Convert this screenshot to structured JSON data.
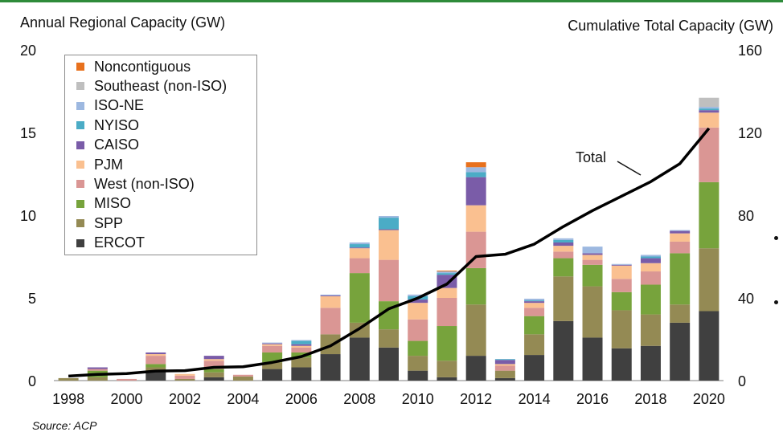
{
  "header": {
    "left_axis_title": "Annual Regional Capacity (GW)",
    "right_axis_title": "Cumulative Total Capacity (GW)"
  },
  "source": "Source: ACP",
  "total_label": "Total",
  "colors": {
    "Noncontiguous": "#e8711d",
    "Southeast (non-ISO)": "#bfbfbf",
    "ISO-NE": "#9db8e0",
    "NYISO": "#4bacc6",
    "CAISO": "#7a5ca8",
    "PJM": "#fac090",
    "West (non-ISO)": "#da9694",
    "MISO": "#77a33c",
    "SPP": "#948a54",
    "ERCOT": "#404040",
    "total_line": "#000000",
    "accent_line": "#2e8b3a"
  },
  "chart_data": {
    "type": "bar",
    "stacked": true,
    "categories": [
      "1998",
      "1999",
      "2000",
      "2001",
      "2002",
      "2003",
      "2004",
      "2005",
      "2006",
      "2007",
      "2008",
      "2009",
      "2010",
      "2011",
      "2012",
      "2013",
      "2014",
      "2015",
      "2016",
      "2017",
      "2018",
      "2019",
      "2020"
    ],
    "x_tick_labels": [
      "1998",
      "2000",
      "2002",
      "2004",
      "2006",
      "2008",
      "2010",
      "2012",
      "2014",
      "2016",
      "2018",
      "2020"
    ],
    "ylabel_left": "Annual Regional Capacity (GW)",
    "ylabel_right": "Cumulative Total Capacity (GW)",
    "ylim_left": [
      0,
      20
    ],
    "yticks_left": [
      0,
      5,
      10,
      15,
      20
    ],
    "ylim_right": [
      0,
      160
    ],
    "yticks_right": [
      0,
      40,
      80,
      120,
      160
    ],
    "legend_position": "top-left",
    "series": [
      {
        "name": "ERCOT",
        "values": [
          0,
          0,
          0,
          0.6,
          0,
          0.2,
          0,
          0.7,
          0.8,
          1.6,
          2.6,
          2.0,
          0.6,
          0.2,
          1.5,
          0.15,
          1.55,
          3.6,
          2.6,
          1.95,
          2.1,
          3.5,
          4.2
        ]
      },
      {
        "name": "SPP",
        "values": [
          0.15,
          0.2,
          0,
          0.2,
          0.1,
          0.3,
          0.25,
          0.4,
          0.6,
          1.2,
          0.9,
          1.1,
          0.9,
          1.0,
          3.1,
          0.45,
          1.25,
          2.7,
          3.1,
          2.3,
          1.9,
          1.1,
          3.8
        ]
      },
      {
        "name": "MISO",
        "values": [
          0,
          0.4,
          0,
          0.2,
          0,
          0.2,
          0,
          0.6,
          0.3,
          0,
          3.0,
          1.7,
          0.9,
          2.1,
          2.2,
          0,
          1.1,
          1.1,
          1.3,
          1.1,
          1.8,
          3.1,
          4.0
        ]
      },
      {
        "name": "West (non-ISO)",
        "values": [
          0,
          0.1,
          0.1,
          0.5,
          0.2,
          0.5,
          0.1,
          0.4,
          0.3,
          1.6,
          0.9,
          2.5,
          1.3,
          1.7,
          2.2,
          0.3,
          0.5,
          0.4,
          0.3,
          0.8,
          0.8,
          0.7,
          3.3
        ]
      },
      {
        "name": "PJM",
        "values": [
          0,
          0,
          0,
          0.1,
          0.1,
          0.1,
          0,
          0.1,
          0.1,
          0.7,
          0.6,
          1.8,
          1.0,
          0.6,
          1.6,
          0.1,
          0.3,
          0.35,
          0.3,
          0.8,
          0.5,
          0.5,
          0.9
        ]
      },
      {
        "name": "CAISO",
        "values": [
          0,
          0.1,
          0,
          0.1,
          0,
          0.2,
          0,
          0.05,
          0.1,
          0.05,
          0.05,
          0.05,
          0.2,
          0.8,
          1.7,
          0.25,
          0.1,
          0.2,
          0.1,
          0.05,
          0.3,
          0.15,
          0.15
        ]
      },
      {
        "name": "NYISO",
        "values": [
          0,
          0,
          0,
          0,
          0,
          0,
          0,
          0,
          0.2,
          0,
          0.2,
          0.7,
          0.2,
          0.1,
          0.3,
          0.05,
          0.05,
          0.15,
          0,
          0,
          0.1,
          0,
          0.1
        ]
      },
      {
        "name": "ISO-NE",
        "values": [
          0,
          0,
          0,
          0,
          0,
          0,
          0,
          0.05,
          0.05,
          0.05,
          0.1,
          0.1,
          0.1,
          0.1,
          0.3,
          0,
          0.1,
          0.1,
          0.4,
          0.05,
          0.1,
          0.05,
          0.1
        ]
      },
      {
        "name": "Southeast (non-ISO)",
        "values": [
          0,
          0,
          0,
          0,
          0,
          0,
          0,
          0,
          0,
          0,
          0,
          0,
          0,
          0,
          0,
          0,
          0,
          0,
          0,
          0,
          0,
          0,
          0.55
        ]
      },
      {
        "name": "Noncontiguous",
        "values": [
          0,
          0,
          0,
          0,
          0,
          0,
          0,
          0,
          0,
          0,
          0,
          0,
          0,
          0.05,
          0.3,
          0,
          0,
          0,
          0,
          0,
          0,
          0,
          0
        ]
      }
    ],
    "total": {
      "name": "Total",
      "axis": "right",
      "values": [
        2.2,
        3,
        3.4,
        4.6,
        4.8,
        6.4,
        6.7,
        8.8,
        11.6,
        16.8,
        25.2,
        34.7,
        39.9,
        46.7,
        60.0,
        61.1,
        66.0,
        74.5,
        82.2,
        89.2,
        96.2,
        104.9,
        122.0
      ]
    }
  }
}
